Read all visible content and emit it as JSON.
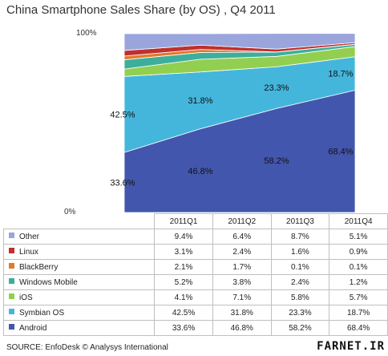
{
  "chart_data": {
    "type": "area",
    "title": "China Smartphone Sales Share (by OS) , Q4 2011",
    "categories": [
      "2011Q1",
      "2011Q2",
      "2011Q3",
      "2011Q4"
    ],
    "y_ticks": [
      "100%",
      "0%"
    ],
    "ylim": [
      0,
      100
    ],
    "stacked": true,
    "legend_placement": "table-left",
    "series": [
      {
        "name": "Android",
        "values": [
          33.6,
          46.8,
          58.2,
          68.4
        ],
        "labels": [
          "33.6%",
          "46.8%",
          "58.2%",
          "68.4%"
        ],
        "color": "#4356ad"
      },
      {
        "name": "Symbian OS",
        "values": [
          42.5,
          31.8,
          23.3,
          18.7
        ],
        "labels": [
          "42.5%",
          "31.8%",
          "23.3%",
          "18.7%"
        ],
        "color": "#44b6dc"
      },
      {
        "name": "iOS",
        "values": [
          4.1,
          7.1,
          5.8,
          5.7
        ],
        "labels": [
          "4.1%",
          "7.1%",
          "5.8%",
          "5.7%"
        ],
        "color": "#92cf50"
      },
      {
        "name": "Windows Mobile",
        "values": [
          5.2,
          3.8,
          2.4,
          1.2
        ],
        "labels": [
          "5.2%",
          "3.8%",
          "2.4%",
          "1.2%"
        ],
        "color": "#3eae9c"
      },
      {
        "name": "BlackBerry",
        "values": [
          2.1,
          1.7,
          0.1,
          0.1
        ],
        "labels": [
          "2.1%",
          "1.7%",
          "0.1%",
          "0.1%"
        ],
        "color": "#e07b2a"
      },
      {
        "name": "Linux",
        "values": [
          3.1,
          2.4,
          1.6,
          0.9
        ],
        "labels": [
          "3.1%",
          "2.4%",
          "1.6%",
          "0.9%"
        ],
        "color": "#c0302e"
      },
      {
        "name": "Other",
        "values": [
          9.4,
          6.4,
          8.7,
          5.1
        ],
        "labels": [
          "9.4%",
          "6.4%",
          "8.7%",
          "5.1%"
        ],
        "color": "#9aa5dc"
      }
    ],
    "chart_labels_shown": [
      "Android",
      "Symbian OS"
    ],
    "table_row_order": [
      "Other",
      "Linux",
      "BlackBerry",
      "Windows Mobile",
      "iOS",
      "Symbian OS",
      "Android"
    ]
  },
  "source": "SOURCE: EnfoDesk © Analysys International",
  "watermark": "FARNET.IR"
}
